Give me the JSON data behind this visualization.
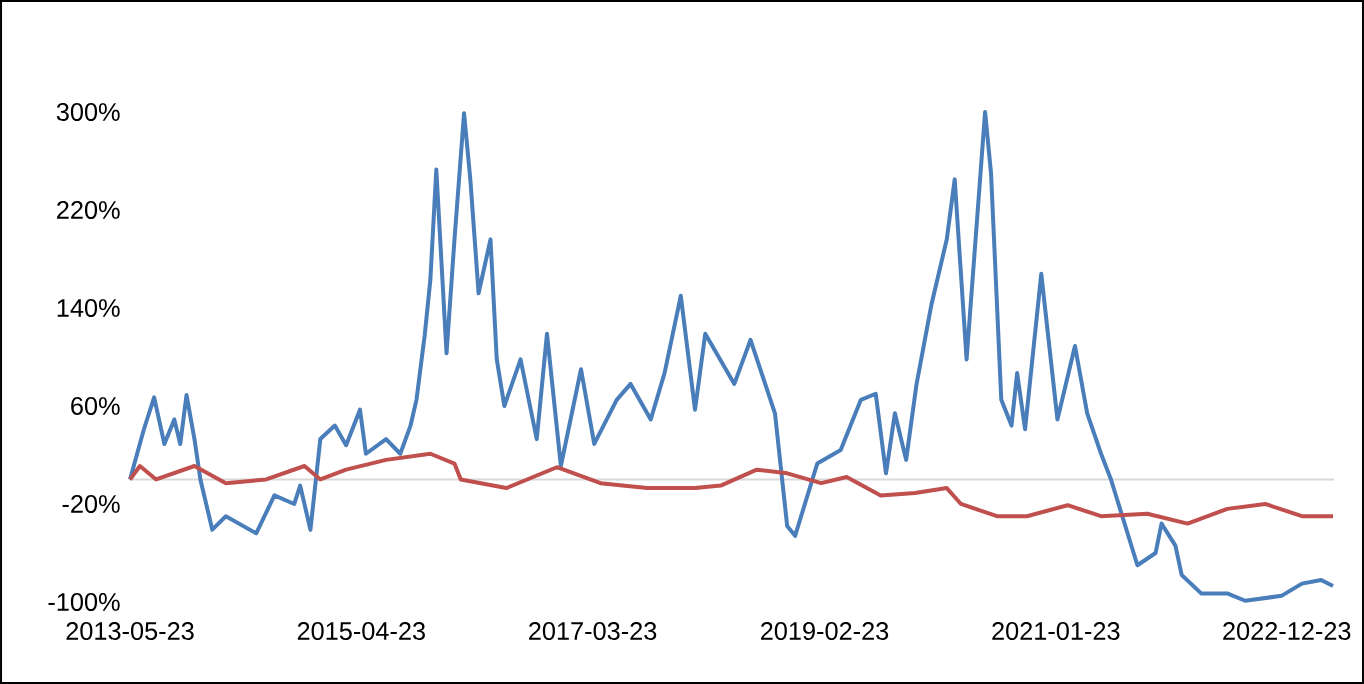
{
  "chart_data": {
    "type": "line",
    "marker": "none",
    "line_style": "solid",
    "xlim": [
      "2013-05-23",
      "2023-05-15"
    ],
    "xticks": [
      "2013-05-23",
      "2015-04-23",
      "2017-03-23",
      "2019-02-23",
      "2021-01-23",
      "2022-12-23"
    ],
    "ylim": [
      -100,
      300
    ],
    "yticks": [
      {
        "value": -100,
        "label": "-100%"
      },
      {
        "value": -20,
        "label": "-20%"
      },
      {
        "value": 60,
        "label": "60%"
      },
      {
        "value": 140,
        "label": "140%"
      },
      {
        "value": 220,
        "label": "220%"
      },
      {
        "value": 300,
        "label": "300%"
      }
    ],
    "ref_lines": [
      {
        "axis": "y",
        "value": 0,
        "color": "#d9d9d9"
      }
    ],
    "series": [
      {
        "color": "#4a7ebb",
        "x": [
          "2013-05-23",
          "2013-07-04",
          "2013-08-04",
          "2013-09-04",
          "2013-10-04",
          "2013-10-22",
          "2013-11-10",
          "2013-12-04",
          "2013-12-22",
          "2014-01-27",
          "2014-03-09",
          "2014-06-09",
          "2014-08-03",
          "2014-10-02",
          "2014-10-20",
          "2014-11-20",
          "2014-12-20",
          "2015-02-02",
          "2015-03-08",
          "2015-04-19",
          "2015-05-07",
          "2015-07-07",
          "2015-08-19",
          "2015-09-19",
          "2015-10-07",
          "2015-11-01",
          "2015-11-18",
          "2015-12-06",
          "2016-01-06",
          "2016-01-30",
          "2016-02-28",
          "2016-03-18",
          "2016-04-12",
          "2016-05-18",
          "2016-06-06",
          "2016-06-29",
          "2016-08-17",
          "2016-10-05",
          "2016-11-05",
          "2016-12-17",
          "2017-02-16",
          "2017-03-28",
          "2017-06-04",
          "2017-07-16",
          "2017-09-15",
          "2017-10-27",
          "2017-12-15",
          "2018-01-27",
          "2018-02-27",
          "2018-05-26",
          "2018-07-14",
          "2018-09-26",
          "2018-11-02",
          "2018-11-26",
          "2019-02-01",
          "2019-04-13",
          "2019-06-13",
          "2019-07-28",
          "2019-08-28",
          "2019-09-24",
          "2019-10-28",
          "2019-11-28",
          "2020-01-12",
          "2020-02-28",
          "2020-03-23",
          "2020-04-28",
          "2020-06-23",
          "2020-07-11",
          "2020-08-11",
          "2020-09-11",
          "2020-09-28",
          "2020-10-22",
          "2020-12-10",
          "2021-01-28",
          "2021-03-22",
          "2021-04-28",
          "2021-06-09",
          "2021-07-09",
          "2021-09-27",
          "2021-11-21",
          "2021-12-09",
          "2022-01-20",
          "2022-02-08",
          "2022-04-08",
          "2022-06-26",
          "2022-08-19",
          "2022-12-07",
          "2023-02-07",
          "2023-04-06",
          "2023-05-12"
        ],
        "values": [
          0,
          41,
          67,
          29,
          49,
          29,
          69,
          33,
          0,
          -41,
          -30,
          -44,
          -13,
          -20,
          -5,
          -41,
          33,
          44,
          28,
          57,
          21,
          33,
          21,
          44,
          65,
          118,
          163,
          253,
          103,
          196,
          299,
          245,
          152,
          196,
          98,
          60,
          98,
          33,
          119,
          11,
          90,
          29,
          65,
          78,
          49,
          87,
          150,
          57,
          119,
          78,
          114,
          54,
          -38,
          -46,
          13,
          24,
          65,
          70,
          5,
          54,
          16,
          77,
          142,
          196,
          245,
          98,
          300,
          250,
          65,
          44,
          87,
          41,
          168,
          49,
          109,
          54,
          21,
          0,
          -70,
          -60,
          -36,
          -54,
          -78,
          -93,
          -93,
          -99,
          -95,
          -85,
          -82,
          -87
        ]
      },
      {
        "color": "#c0504d",
        "x": [
          "2013-05-23",
          "2013-06-22",
          "2013-08-10",
          "2013-12-04",
          "2014-03-09",
          "2014-07-09",
          "2014-11-02",
          "2014-12-20",
          "2015-03-08",
          "2015-07-07",
          "2015-11-18",
          "2016-01-30",
          "2016-02-18",
          "2016-07-05",
          "2016-12-05",
          "2017-04-16",
          "2017-09-04",
          "2018-01-27",
          "2018-04-15",
          "2018-08-02",
          "2018-11-02",
          "2019-02-13",
          "2019-05-01",
          "2019-08-12",
          "2019-11-24",
          "2020-02-28",
          "2020-04-11",
          "2020-07-29",
          "2020-10-28",
          "2021-02-28",
          "2021-06-09",
          "2021-10-27",
          "2022-02-26",
          "2022-06-26",
          "2022-10-19",
          "2023-02-07",
          "2023-05-12"
        ],
        "values": [
          0,
          11,
          0,
          11,
          -3,
          0,
          11,
          0,
          8,
          16,
          21,
          13,
          0,
          -7,
          10,
          -3,
          -7,
          -7,
          -5,
          8,
          5,
          -3,
          2,
          -13,
          -11,
          -7,
          -20,
          -30,
          -30,
          -21,
          -30,
          -28,
          -36,
          -24,
          -20,
          -30,
          -30
        ]
      }
    ]
  }
}
